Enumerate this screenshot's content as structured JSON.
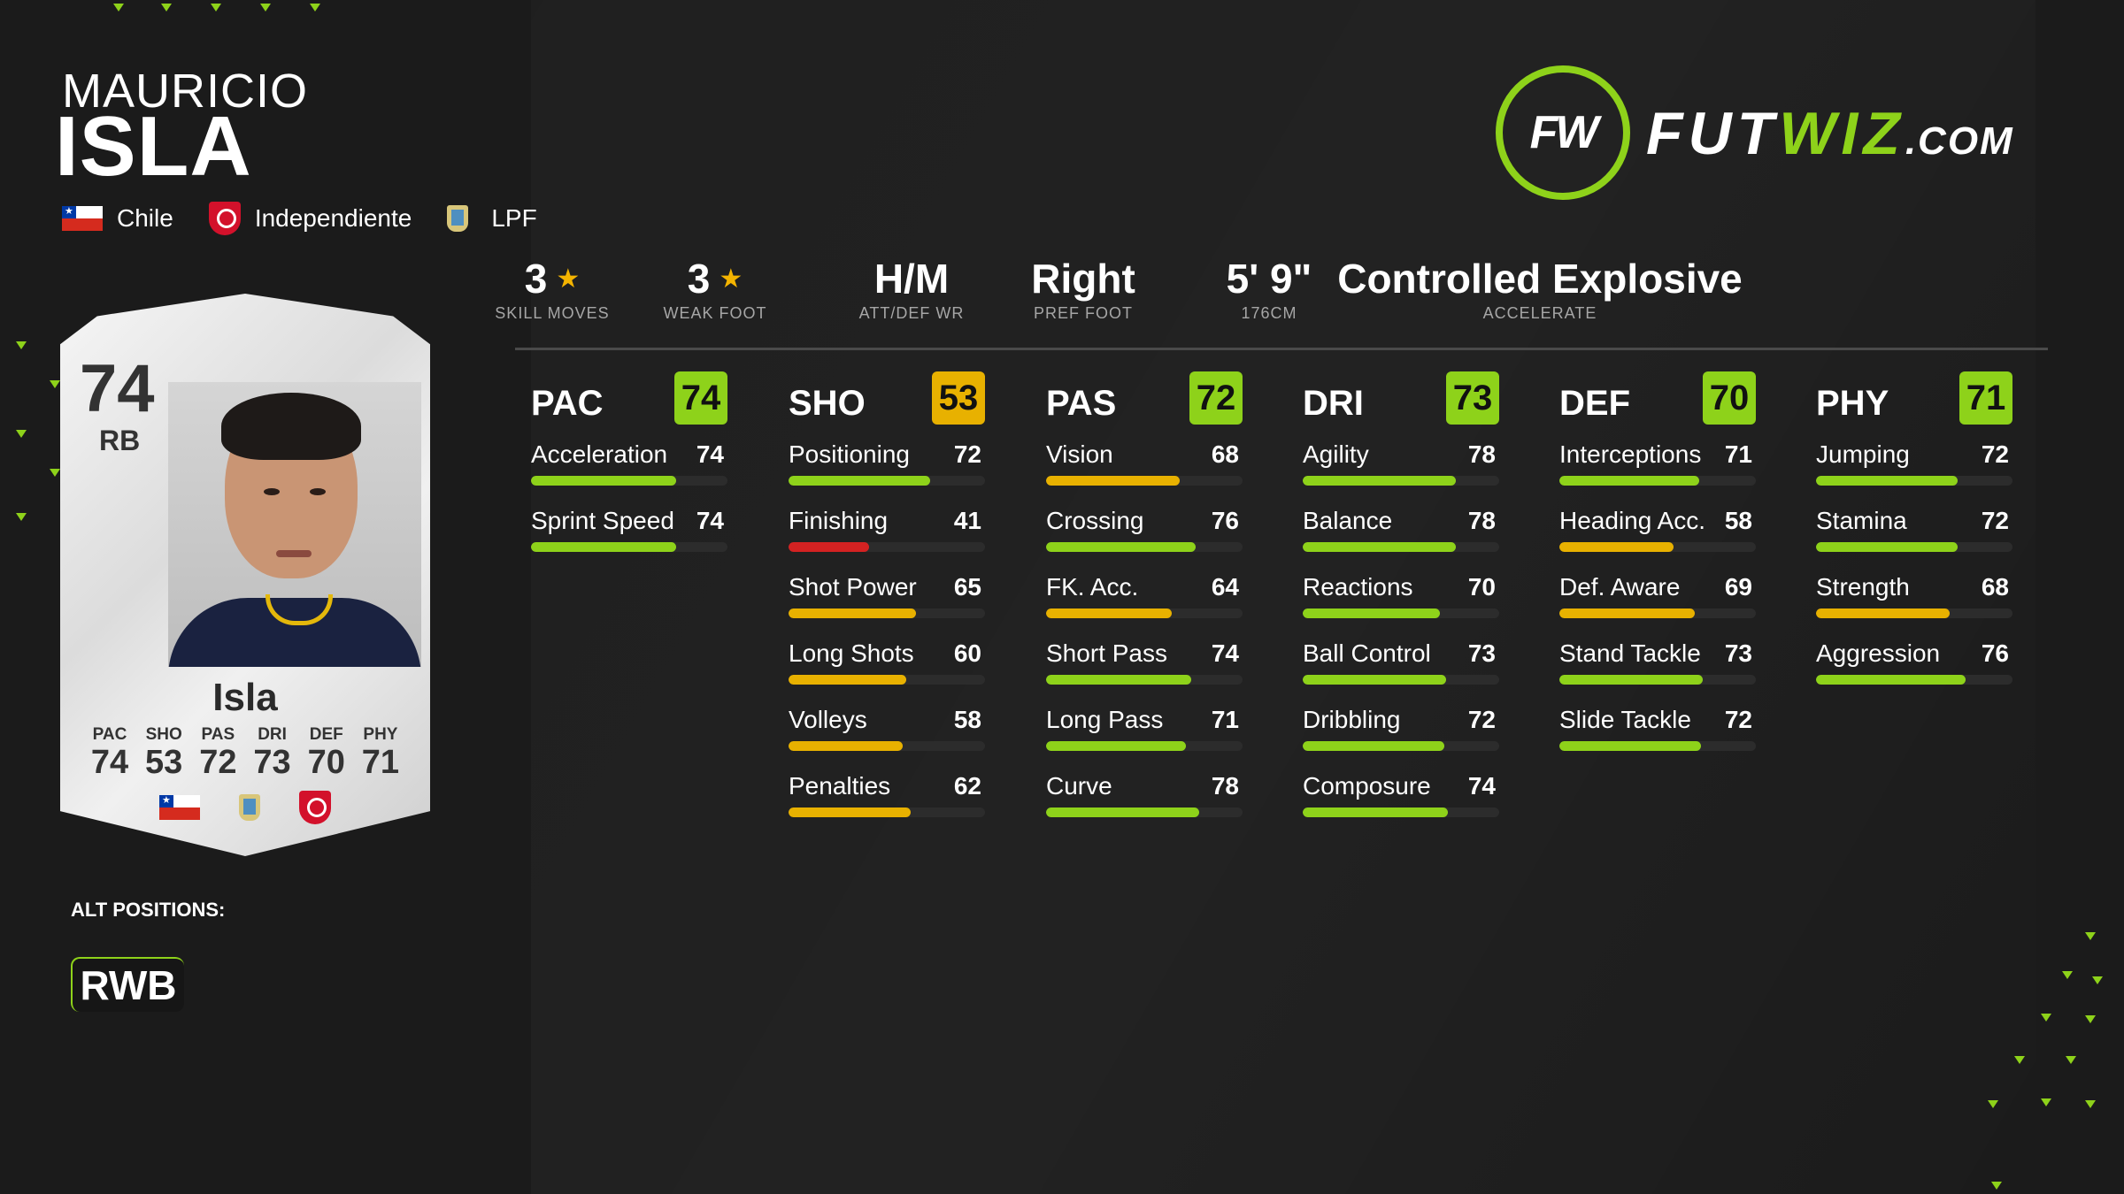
{
  "player": {
    "first_name": "MAURICIO",
    "last_name": "ISLA",
    "nation": "Chile",
    "club": "Independiente",
    "league": "LPF"
  },
  "logo": {
    "text_a": "FUT",
    "text_b": "WIZ",
    "text_c": ".COM",
    "mark": "FW"
  },
  "info": [
    {
      "value": "3",
      "label": "SKILL MOVES",
      "star": true
    },
    {
      "value": "3",
      "label": "WEAK FOOT",
      "star": true
    },
    {
      "value": "H/M",
      "label": "ATT/DEF WR"
    },
    {
      "value": "Right",
      "label": "PREF FOOT"
    },
    {
      "value": "5' 9\"",
      "label": "176CM"
    },
    {
      "value": "Controlled Explosive",
      "label": "ACCELERATE"
    }
  ],
  "colors": {
    "green": "#8ed21a",
    "yellow": "#e8b100",
    "red": "#d42222"
  },
  "stat_groups": [
    {
      "name": "PAC",
      "value": 74,
      "stats": [
        {
          "name": "Acceleration",
          "value": 74
        },
        {
          "name": "Sprint Speed",
          "value": 74
        }
      ]
    },
    {
      "name": "SHO",
      "value": 53,
      "stats": [
        {
          "name": "Positioning",
          "value": 72
        },
        {
          "name": "Finishing",
          "value": 41
        },
        {
          "name": "Shot Power",
          "value": 65
        },
        {
          "name": "Long Shots",
          "value": 60
        },
        {
          "name": "Volleys",
          "value": 58
        },
        {
          "name": "Penalties",
          "value": 62
        }
      ]
    },
    {
      "name": "PAS",
      "value": 72,
      "stats": [
        {
          "name": "Vision",
          "value": 68
        },
        {
          "name": "Crossing",
          "value": 76
        },
        {
          "name": "FK. Acc.",
          "value": 64
        },
        {
          "name": "Short Pass",
          "value": 74
        },
        {
          "name": "Long Pass",
          "value": 71
        },
        {
          "name": "Curve",
          "value": 78
        }
      ]
    },
    {
      "name": "DRI",
      "value": 73,
      "stats": [
        {
          "name": "Agility",
          "value": 78
        },
        {
          "name": "Balance",
          "value": 78
        },
        {
          "name": "Reactions",
          "value": 70
        },
        {
          "name": "Ball Control",
          "value": 73
        },
        {
          "name": "Dribbling",
          "value": 72
        },
        {
          "name": "Composure",
          "value": 74
        }
      ]
    },
    {
      "name": "DEF",
      "value": 70,
      "stats": [
        {
          "name": "Interceptions",
          "value": 71
        },
        {
          "name": "Heading Acc.",
          "value": 58
        },
        {
          "name": "Def. Aware",
          "value": 69
        },
        {
          "name": "Stand Tackle",
          "value": 73
        },
        {
          "name": "Slide Tackle",
          "value": 72
        }
      ]
    },
    {
      "name": "PHY",
      "value": 71,
      "stats": [
        {
          "name": "Jumping",
          "value": 72
        },
        {
          "name": "Stamina",
          "value": 72
        },
        {
          "name": "Strength",
          "value": 68
        },
        {
          "name": "Aggression",
          "value": 76
        }
      ]
    }
  ],
  "card": {
    "rating": "74",
    "position": "RB",
    "name": "Isla",
    "stats": [
      {
        "label": "PAC",
        "value": "74"
      },
      {
        "label": "SHO",
        "value": "53"
      },
      {
        "label": "PAS",
        "value": "72"
      },
      {
        "label": "DRI",
        "value": "73"
      },
      {
        "label": "DEF",
        "value": "70"
      },
      {
        "label": "PHY",
        "value": "71"
      }
    ]
  },
  "alt_positions": {
    "label": "ALT POSITIONS:",
    "items": [
      "RWB"
    ]
  }
}
